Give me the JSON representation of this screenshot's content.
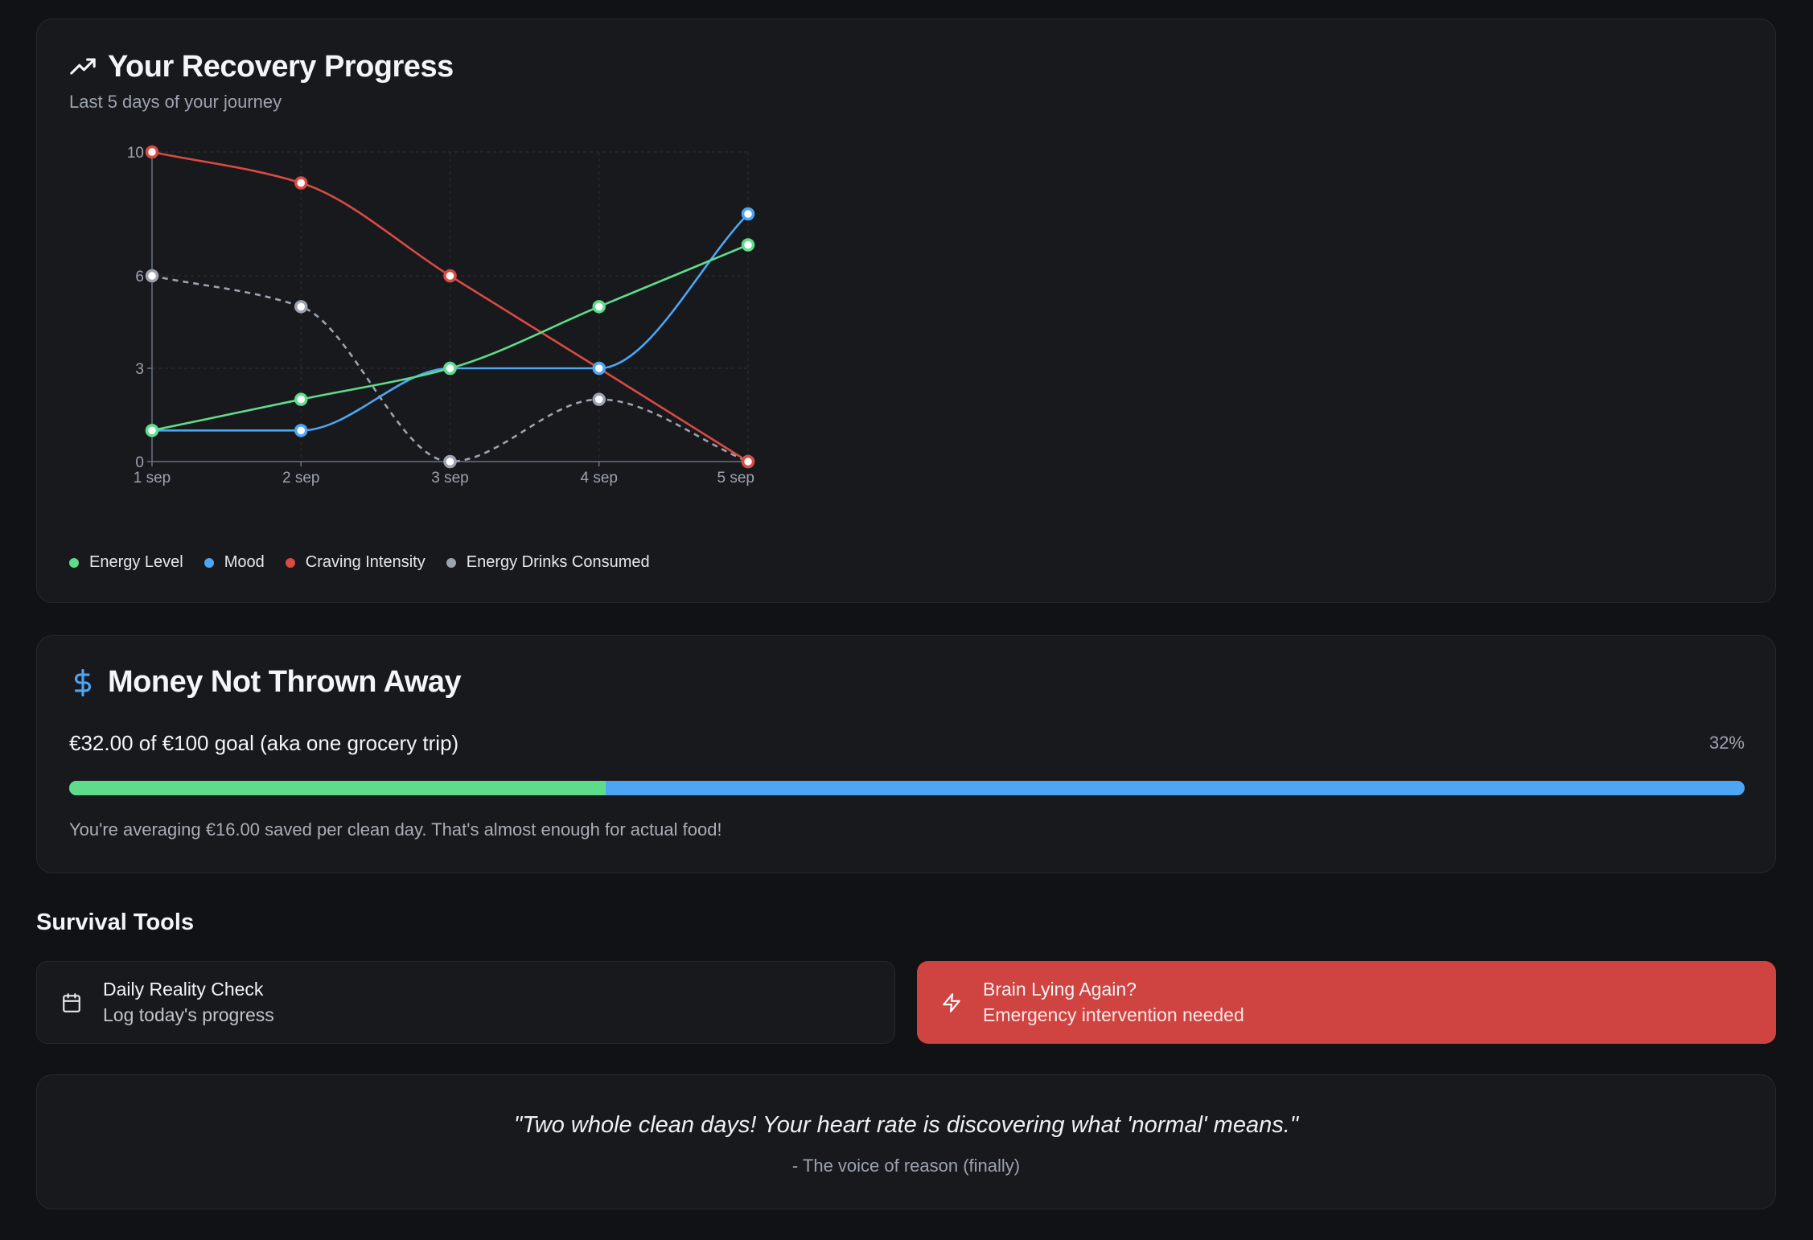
{
  "progress": {
    "title": "Your Recovery Progress",
    "title_icon": "trending-up-icon",
    "subtitle": "Last 5 days of your journey"
  },
  "chart_data": {
    "type": "line",
    "x": [
      "1 sep",
      "2 sep",
      "3 sep",
      "4 sep",
      "5 sep"
    ],
    "y_ticks": [
      0,
      3,
      6,
      10
    ],
    "ylim": [
      0,
      10
    ],
    "grid": true,
    "legend_position": "bottom-left",
    "series": [
      {
        "name": "Energy Level",
        "color": "#5fdc8a",
        "dashed": false,
        "values": [
          1,
          2,
          3,
          5,
          7
        ]
      },
      {
        "name": "Mood",
        "color": "#4ca6f4",
        "dashed": false,
        "values": [
          1,
          1,
          3,
          3,
          8
        ]
      },
      {
        "name": "Craving Intensity",
        "color": "#d94a42",
        "dashed": false,
        "values": [
          10,
          9,
          6,
          3,
          0
        ]
      },
      {
        "name": "Energy Drinks Consumed",
        "color": "#9ca3af",
        "dashed": true,
        "values": [
          6,
          5,
          0,
          2,
          0
        ]
      }
    ]
  },
  "money": {
    "title": "Money Not Thrown Away",
    "title_icon": "dollar-icon",
    "summary": "€32.00 of €100 goal (aka one grocery trip)",
    "percent_label": "32%",
    "progress_fraction": 0.32,
    "note": "You're averaging €16.00 saved per clean day. That's almost enough for actual food!"
  },
  "tools": {
    "section_title": "Survival Tools",
    "daily": {
      "title": "Daily Reality Check",
      "subtitle": "Log today's progress",
      "icon": "calendar-icon"
    },
    "emergency": {
      "title": "Brain Lying Again?",
      "subtitle": "Emergency intervention needed",
      "icon": "zap-icon"
    }
  },
  "quote": {
    "text": "\"Two whole clean days! Your heart rate is discovering what 'normal' means.\"",
    "author": "- The voice of reason (finally)"
  }
}
